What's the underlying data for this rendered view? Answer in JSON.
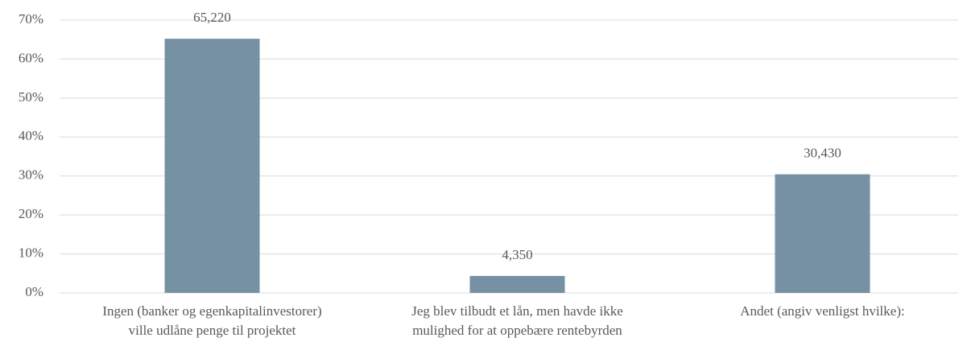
{
  "chart_data": {
    "type": "bar",
    "categories": [
      "Ingen (banker og egenkapitalinvestorer)\nville udlåne penge til projektet",
      "Jeg blev tilbudt et lån, men havde ikke\nmulighed for at oppebære rentebyrden",
      "Andet (angiv venligst hvilke):"
    ],
    "values": [
      65.22,
      4.35,
      30.43
    ],
    "value_labels": [
      "65,220",
      "4,350",
      "30,430"
    ],
    "color": "#7591a3",
    "ylim": [
      0,
      70
    ],
    "yticks": [
      {
        "value": 0,
        "label": "0%"
      },
      {
        "value": 10,
        "label": "10%"
      },
      {
        "value": 20,
        "label": "20%"
      },
      {
        "value": 30,
        "label": "30%"
      },
      {
        "value": 40,
        "label": "40%"
      },
      {
        "value": 50,
        "label": "50%"
      },
      {
        "value": 60,
        "label": "60%"
      },
      {
        "value": 70,
        "label": "70%"
      }
    ],
    "grid": true
  }
}
